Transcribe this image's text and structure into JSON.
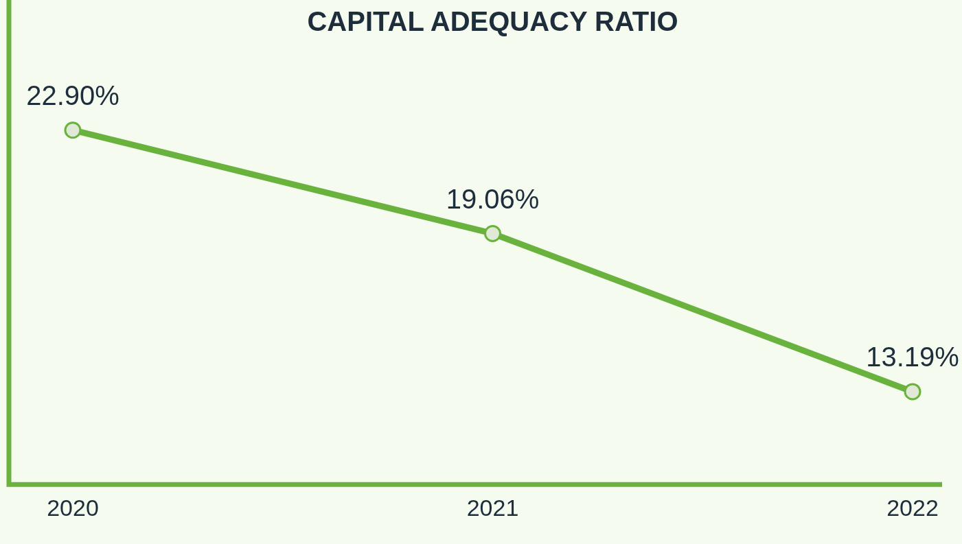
{
  "chart_data": {
    "type": "line",
    "title": "CAPITAL ADEQUACY RATIO",
    "categories": [
      "2020",
      "2021",
      "2022"
    ],
    "series": [
      {
        "color": "#6ab23e",
        "values": [
          22.9,
          19.06,
          13.19
        ],
        "value_labels": [
          "22.90%",
          "19.06%",
          "13.19%"
        ]
      }
    ],
    "tick_labels": "x",
    "grid": false,
    "legend": false,
    "marker": "circle",
    "line_style": "solid"
  }
}
